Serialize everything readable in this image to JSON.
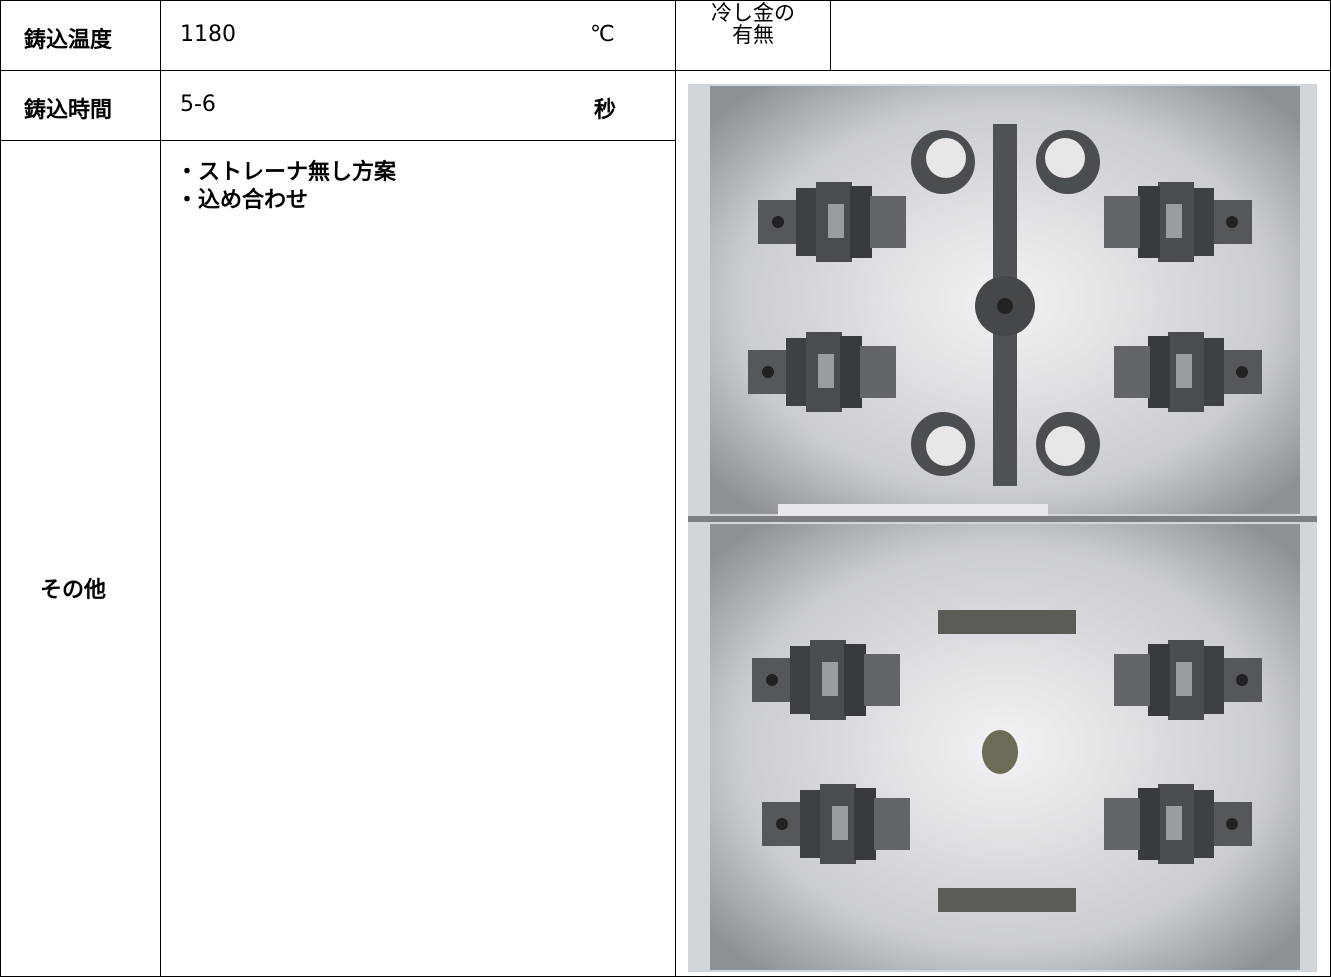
{
  "table": {
    "rows": [
      {
        "label": "鋳込温度",
        "value": "1180",
        "unit": "℃"
      },
      {
        "label": "鋳込時間",
        "value": "5-6",
        "unit": "秒"
      },
      {
        "label": "その他",
        "notes": [
          "・ストレーナ無し方案",
          "・込め合わせ"
        ]
      }
    ],
    "chill": {
      "label": "冷し金の\n有無"
    }
  }
}
